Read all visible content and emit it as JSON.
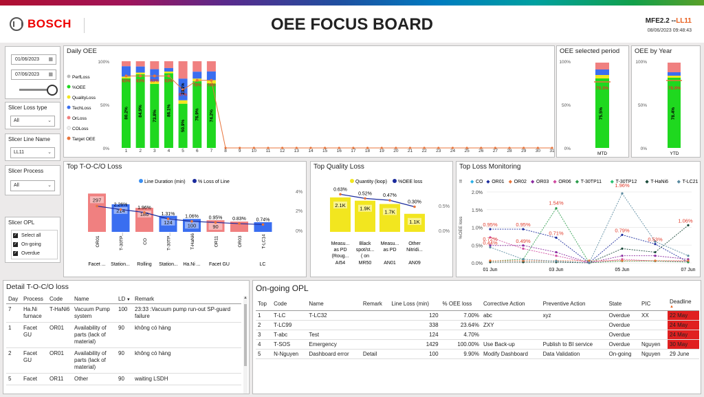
{
  "header": {
    "logo": "BOSCH",
    "title": "OEE FOCUS BOARD",
    "code_prefix": "MFE2.2 --",
    "code_line": "LL11",
    "datetime": "08/06/2023 09:48:43"
  },
  "filters": {
    "date_from": "01/06/2023",
    "date_to": "07/06/2023",
    "loss_type": {
      "label": "Slicer Loss type",
      "value": "All"
    },
    "line_name": {
      "label": "Slicer Line Name",
      "value": "LL11"
    },
    "process": {
      "label": "Slicer Process",
      "value": "All"
    },
    "opl": {
      "label": "Slicer OPL",
      "options": [
        "Select all",
        "On-going",
        "Overdue"
      ]
    }
  },
  "daily": {
    "title": "Daily OEE",
    "legend": [
      "PerfLoss",
      "%OEE",
      "QualityLoss",
      "TechLoss",
      "OrLoss",
      "COLoss",
      "Target OEE"
    ],
    "y_ticks": [
      "100%",
      "50%",
      "0%"
    ],
    "bar_labels": [
      "80.2%",
      "84.9%",
      "73.8%",
      "86.1%",
      "50.9%",
      "76.9%",
      "74.2%"
    ],
    "target_labels": [
      "83%",
      "83%",
      "83%",
      "83%",
      "67%",
      "78%",
      "78%"
    ],
    "x_labels": [
      "1",
      "2",
      "3",
      "4",
      "5",
      "6",
      "7",
      "8",
      "9",
      "10",
      "11",
      "12",
      "13",
      "14",
      "15",
      "16",
      "17",
      "18",
      "19",
      "20",
      "21",
      "22",
      "23",
      "24",
      "25",
      "26",
      "27",
      "28",
      "29",
      "30",
      "31"
    ],
    "extra_label": "23.1%"
  },
  "oee_period": {
    "title": "OEE selected period",
    "bar_label": "75.5%",
    "target": "79.3%",
    "x": "MTD",
    "y_ticks": [
      "100%",
      "50%",
      "0%"
    ]
  },
  "oee_year": {
    "title": "OEE by Year",
    "bar_label": "78.4%",
    "target": "78.9%",
    "x": "YTD",
    "y_ticks": [
      "100%",
      "50%",
      "0%"
    ]
  },
  "tco": {
    "title": "Top T-O-C/O Loss",
    "legend": [
      "Line Duration (min)",
      "% Loss of Line"
    ],
    "values": [
      "297",
      "214",
      "186",
      "124",
      "100",
      "90"
    ],
    "pct": [
      "2.26%",
      "1.96%",
      "1.31%",
      "1.06%",
      "0.95%",
      "0.83%",
      "0.74%"
    ],
    "codes": [
      "OR01",
      "T-30TP...",
      "CO",
      "T-30TP...",
      "T-HaNi6",
      "OR11",
      "OR03",
      "T-LC14"
    ],
    "groups": [
      "Facet ...",
      "Station...",
      "Rolling",
      "Station...",
      "Ha.Ni ...",
      "Facet GU",
      "LC"
    ],
    "y_ticks": [
      "4%",
      "2%",
      "0%"
    ]
  },
  "quality": {
    "title": "Top Quality Loss",
    "legend": [
      "Quantity (loop)",
      "%OEE loss"
    ],
    "values": [
      "2.1K",
      "1.9K",
      "1.7K",
      "1.1K"
    ],
    "pct": [
      "0.63%",
      "0.52%",
      "0.47%",
      "0.30%"
    ],
    "names": [
      "Measu... as PD (Roug...",
      "Black spot/st... ( on fa...",
      "Measu... as PD",
      "Other Nitridi..."
    ],
    "codes": [
      "AI54",
      "MR50",
      "AN01",
      "AN09"
    ],
    "y_ticks": [
      "0.5%",
      "0.0%"
    ]
  },
  "monitoring": {
    "title": "Top Loss Monitoring",
    "legend": [
      "CO",
      "OR01",
      "OR02",
      "OR03",
      "OR06",
      "T-30TP11",
      "T-30TP12",
      "T-HaNi6",
      "T-LC21"
    ],
    "y_title": "%OEE loss",
    "y_ticks": [
      "2.0%",
      "1.5%",
      "1.0%",
      "0.5%",
      "0.0%"
    ],
    "x_ticks": [
      "01 Jun",
      "03 Jun",
      "05 Jun",
      "07 Jun"
    ],
    "labels": [
      "0.95%",
      "0.95%",
      "1.54%",
      "0.44%",
      "0.49%",
      "0.71%",
      "0.72%",
      "1.96%",
      "0.79%",
      "0.53%",
      "1.06%"
    ]
  },
  "detail": {
    "title": "Detail T-O-C/O loss",
    "headers": [
      "Day",
      "Process",
      "Code",
      "Name",
      "LD",
      "Remark"
    ],
    "rows": [
      [
        "7",
        "Ha.Ni furnace",
        "T-HaNi6",
        "Vacuum Pump system",
        "100",
        "23:33 :Vacuum pump run-out SP-guard failure"
      ],
      [
        "1",
        "Facet GU",
        "OR01",
        "Availability of parts (lack of material)",
        "90",
        "không có hàng"
      ],
      [
        "2",
        "Facet GU",
        "OR01",
        "Availability of parts (lack of material)",
        "90",
        "không có hàng"
      ],
      [
        "5",
        "Facet",
        "OR11",
        "Other",
        "90",
        "waiting LSDH"
      ]
    ]
  },
  "opl": {
    "title": "On-going OPL",
    "headers": [
      "Top",
      "Code",
      "Name",
      "Remark",
      "Line Loss (min)",
      "% OEE loss",
      "Corrective Action",
      "Preventive Action",
      "State",
      "PIC",
      "Deadline"
    ],
    "rows": [
      [
        "1",
        "T-LC",
        "T-LC32",
        "",
        "120",
        "7.00%",
        "abc",
        "xyz",
        "Overdue",
        "XX",
        "22 May"
      ],
      [
        "2",
        "T-LC99",
        "",
        "",
        "338",
        "23.64%",
        "ZXY",
        "",
        "Overdue",
        "",
        "24 May"
      ],
      [
        "3",
        "T-abc",
        "Test",
        "",
        "124",
        "4.70%",
        "",
        "",
        "Overdue",
        "",
        "24 May"
      ],
      [
        "4",
        "T-SOS",
        "Emergency",
        "",
        "1429",
        "100.00%",
        "Use Back-up",
        "Publish to BI service",
        "Overdue",
        "Nguyen",
        "30 May"
      ],
      [
        "5",
        "N-Nguyen",
        "Dashboard error",
        "Detail",
        "100",
        "9.90%",
        "Modify Dashboard",
        "Data Validation",
        "On-going",
        "Nguyen",
        "29 June"
      ]
    ]
  },
  "colors": {
    "oee": "#1fd81f",
    "perf": "#f08080",
    "quality": "#f2e61f",
    "tech": "#3a6ef0",
    "target": "#e8743b",
    "deadline_red": "#e02020"
  }
}
